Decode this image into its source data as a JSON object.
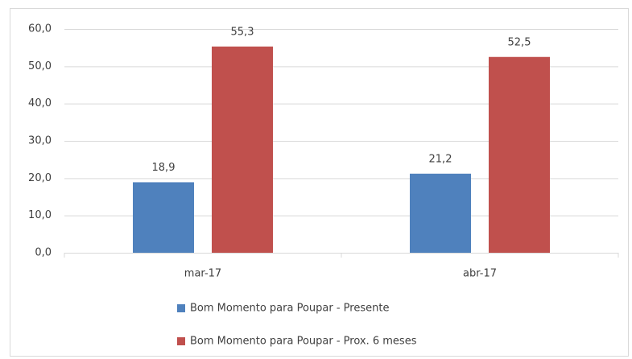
{
  "chart_data": {
    "type": "bar",
    "categories": [
      "mar-17",
      "abr-17"
    ],
    "series": [
      {
        "name": "Bom Momento para Poupar - Presente",
        "color": "#4f81bd",
        "values": [
          18.9,
          21.2
        ],
        "value_labels": [
          "18,9",
          "21,2"
        ]
      },
      {
        "name": "Bom Momento para Poupar - Prox. 6 meses",
        "color": "#c0504d",
        "values": [
          55.3,
          52.5
        ],
        "value_labels": [
          "55,3",
          "52,5"
        ]
      }
    ],
    "ylim": [
      0,
      60
    ],
    "yticks": [
      {
        "value": 0,
        "label": "0,0"
      },
      {
        "value": 10,
        "label": "10,0"
      },
      {
        "value": 20,
        "label": "20,0"
      },
      {
        "value": 30,
        "label": "30,0"
      },
      {
        "value": 40,
        "label": "40,0"
      },
      {
        "value": 50,
        "label": "50,0"
      },
      {
        "value": 60,
        "label": "60,0"
      }
    ],
    "grid": true
  }
}
